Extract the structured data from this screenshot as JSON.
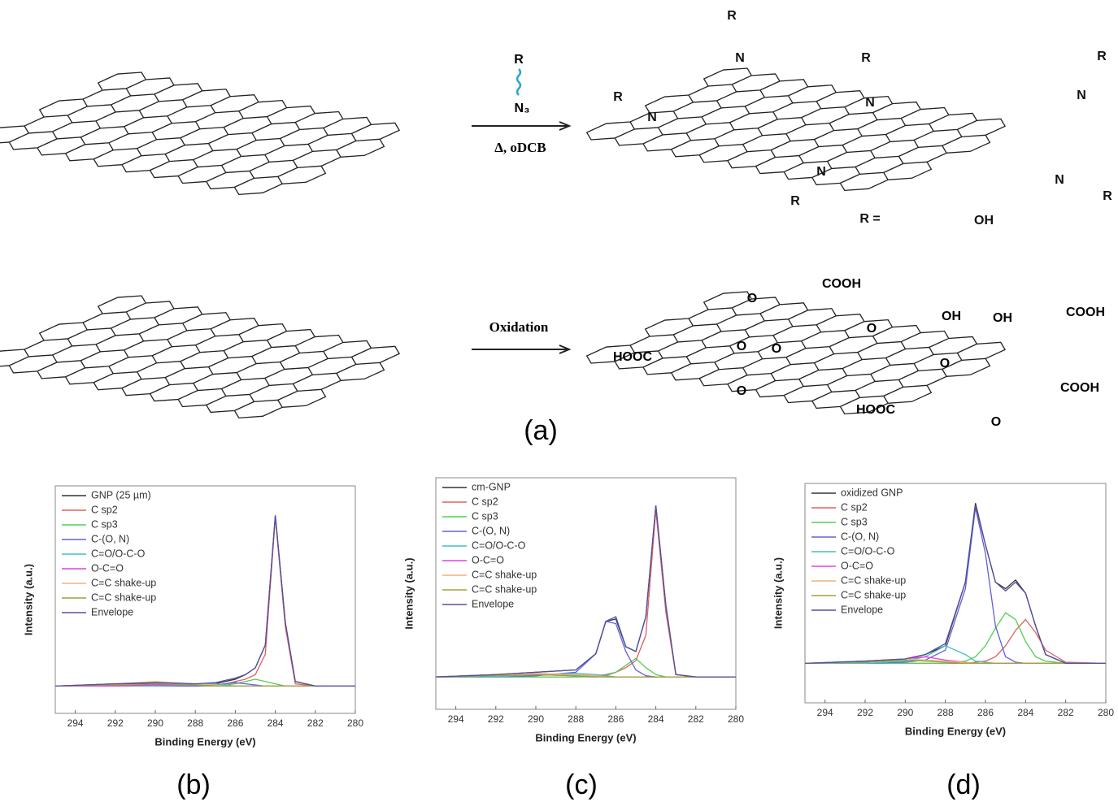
{
  "scheme": {
    "reagent": {
      "r": "R",
      "azide": "N₃"
    },
    "conditions_1": "Δ, oDCB",
    "conditions_2": "Oxidation",
    "product_1_labels": [
      "R",
      "N",
      "R",
      "N",
      "R",
      "N",
      "R",
      "N",
      "N",
      "R",
      "N",
      "R",
      "R =",
      "OH"
    ],
    "product_2_labels": [
      "COOH",
      "O",
      "O",
      "OH",
      "OH",
      "COOH",
      "HOOC",
      "O",
      "O",
      "O",
      "O",
      "COOH",
      "HOOC",
      "O"
    ],
    "panel_label": "(a)"
  },
  "chart_data": [
    {
      "type": "line",
      "panel_label": "(b)",
      "xlabel": "Binding Energy (eV)",
      "ylabel": "Intensity (a.u.)",
      "xlim": [
        295,
        280
      ],
      "ylim": [
        0,
        100
      ],
      "xticks": [
        294,
        292,
        290,
        288,
        286,
        284,
        282,
        280
      ],
      "x": [
        295,
        292,
        290,
        288,
        287,
        286.5,
        286,
        285.5,
        285,
        284.5,
        284,
        283.5,
        283,
        282,
        280
      ],
      "series": [
        {
          "name": "GNP (25 µm)",
          "color": "#333333",
          "values": [
            12,
            13,
            13,
            12.5,
            13,
            14,
            15,
            17,
            20,
            30,
            87,
            40,
            14,
            12,
            12
          ]
        },
        {
          "name": "C sp2",
          "color": "#e06060",
          "values": [
            12,
            12.5,
            12.5,
            12,
            12.5,
            13,
            14,
            15,
            17,
            26,
            86,
            38,
            13,
            12,
            12
          ]
        },
        {
          "name": "C sp3",
          "color": "#50d050",
          "values": [
            12,
            12,
            12,
            12,
            12,
            12.5,
            13,
            14,
            15,
            14,
            13,
            12,
            12,
            12,
            12
          ]
        },
        {
          "name": "C-(O, N)",
          "color": "#6060e0",
          "values": [
            12,
            12,
            12,
            12,
            12.5,
            13,
            13.5,
            13,
            12.5,
            12,
            12,
            12,
            12,
            12,
            12
          ]
        },
        {
          "name": "C=O/O-C-O",
          "color": "#40c0c0",
          "values": [
            12,
            12,
            12,
            12.5,
            13,
            12.5,
            12,
            12,
            12,
            12,
            12,
            12,
            12,
            12,
            12
          ]
        },
        {
          "name": "O-C=O",
          "color": "#e040e0",
          "values": [
            12,
            12,
            12.5,
            12.5,
            12,
            12,
            12,
            12,
            12,
            12,
            12,
            12,
            12,
            12,
            12
          ]
        },
        {
          "name": "C=C shake-up",
          "color": "#f0b080",
          "values": [
            12,
            13,
            14,
            13,
            12.5,
            12,
            12,
            12,
            12,
            12,
            12,
            12,
            12,
            12,
            12
          ]
        },
        {
          "name": "C=C shake-up",
          "color": "#a0a040",
          "values": [
            12,
            12.5,
            13,
            12.5,
            12,
            12,
            12,
            12,
            12,
            12,
            12,
            12,
            12,
            12,
            12
          ]
        },
        {
          "name": "Envelope",
          "color": "#5050a0",
          "values": [
            12,
            13,
            13.5,
            13,
            13.5,
            14.5,
            15.5,
            17,
            20,
            30,
            87,
            40,
            14,
            12,
            12
          ]
        }
      ]
    },
    {
      "type": "line",
      "panel_label": "(c)",
      "xlabel": "Binding Energy (eV)",
      "ylabel": "Intensity (a.u.)",
      "xlim": [
        295,
        280
      ],
      "ylim": [
        0,
        100
      ],
      "xticks": [
        294,
        292,
        290,
        288,
        286,
        284,
        282,
        280
      ],
      "x": [
        295,
        292,
        290,
        288,
        287,
        286.5,
        286,
        285.5,
        285,
        284.5,
        284,
        283.5,
        283,
        282,
        280
      ],
      "series": [
        {
          "name": "cm-GNP",
          "color": "#333333",
          "values": [
            14,
            15,
            16,
            17,
            24,
            38,
            39,
            27,
            25,
            40,
            88,
            45,
            15,
            14,
            14
          ]
        },
        {
          "name": "C sp2",
          "color": "#e06060",
          "values": [
            14,
            14,
            14,
            14,
            14.5,
            15,
            16,
            18,
            21,
            32,
            86,
            42,
            15,
            14,
            14
          ]
        },
        {
          "name": "C sp3",
          "color": "#50d050",
          "values": [
            14,
            14,
            14,
            14,
            14,
            14.5,
            16,
            19,
            22,
            18,
            15,
            14,
            14,
            14,
            14
          ]
        },
        {
          "name": "C-(O, N)",
          "color": "#6060e0",
          "values": [
            14,
            14,
            14.5,
            16,
            24,
            38,
            37,
            25,
            17,
            14.5,
            14,
            14,
            14,
            14,
            14
          ]
        },
        {
          "name": "C=O/O-C-O",
          "color": "#40c0c0",
          "values": [
            14,
            14,
            15,
            15.5,
            15,
            14.5,
            14,
            14,
            14,
            14,
            14,
            14,
            14,
            14,
            14
          ]
        },
        {
          "name": "O-C=O",
          "color": "#e040e0",
          "values": [
            14,
            14.5,
            15,
            14.5,
            14,
            14,
            14,
            14,
            14,
            14,
            14,
            14,
            14,
            14,
            14
          ]
        },
        {
          "name": "C=C shake-up",
          "color": "#f0b080",
          "values": [
            14,
            15,
            15.5,
            15,
            14.5,
            14,
            14,
            14,
            14,
            14,
            14,
            14,
            14,
            14,
            14
          ]
        },
        {
          "name": "C=C shake-up",
          "color": "#a0a040",
          "values": [
            14,
            14.5,
            15,
            14.5,
            14,
            14,
            14,
            14,
            14,
            14,
            14,
            14,
            14,
            14,
            14
          ]
        },
        {
          "name": "Envelope",
          "color": "#5050a0",
          "values": [
            14,
            15,
            16,
            17,
            24,
            38,
            40,
            27,
            25,
            40,
            88,
            45,
            15,
            14,
            14
          ]
        }
      ]
    },
    {
      "type": "line",
      "panel_label": "(d)",
      "xlabel": "Binding Energy (eV)",
      "ylabel": "Intensity (a.u.)",
      "xlim": [
        295,
        280
      ],
      "ylim": [
        0,
        100
      ],
      "xticks": [
        294,
        292,
        290,
        288,
        286,
        284,
        282,
        280
      ],
      "x": [
        295,
        292,
        290,
        289,
        288,
        287,
        286.5,
        286,
        285.5,
        285,
        284.5,
        284,
        283.5,
        283,
        282,
        280
      ],
      "series": [
        {
          "name": "oxidized GNP",
          "color": "#333333",
          "values": [
            18,
            19,
            20,
            22,
            26,
            55,
            91,
            72,
            55,
            52,
            56,
            50,
            35,
            22,
            18,
            18
          ]
        },
        {
          "name": "C sp2",
          "color": "#e06060",
          "values": [
            18,
            18,
            18,
            18,
            18,
            18,
            18.5,
            19,
            21,
            26,
            33,
            38,
            32,
            24,
            18.5,
            18
          ]
        },
        {
          "name": "C sp3",
          "color": "#50d050",
          "values": [
            18,
            18,
            18,
            18,
            18,
            19,
            21,
            26,
            34,
            41,
            38,
            28,
            21,
            19,
            18,
            18
          ]
        },
        {
          "name": "C-(O, N)",
          "color": "#6060e0",
          "values": [
            18,
            18,
            18.5,
            19.5,
            24,
            52,
            89,
            68,
            35,
            21,
            18.5,
            18,
            18,
            18,
            18,
            18
          ]
        },
        {
          "name": "C=O/O-C-O",
          "color": "#40c0c0",
          "values": [
            18,
            18,
            19,
            21,
            26,
            22,
            19,
            18.5,
            18,
            18,
            18,
            18,
            18,
            18,
            18,
            18
          ]
        },
        {
          "name": "O-C=O",
          "color": "#e040e0",
          "values": [
            18,
            18.5,
            20,
            21,
            19.5,
            18.5,
            18,
            18,
            18,
            18,
            18,
            18,
            18,
            18,
            18,
            18
          ]
        },
        {
          "name": "C=C shake-up",
          "color": "#f0b080",
          "values": [
            18,
            19,
            20,
            19.5,
            19,
            18.5,
            18,
            18,
            18,
            18,
            18,
            18,
            18,
            18,
            18,
            18
          ]
        },
        {
          "name": "C=C shake-up",
          "color": "#a0a040",
          "values": [
            18,
            18.5,
            19.5,
            19,
            18.5,
            18,
            18,
            18,
            18,
            18,
            18,
            18,
            18,
            18,
            18,
            18
          ]
        },
        {
          "name": "Envelope",
          "color": "#5050a0",
          "values": [
            18,
            19,
            20,
            22,
            27,
            55,
            90,
            72,
            55,
            51,
            55,
            50,
            35,
            22,
            18,
            18
          ]
        }
      ]
    }
  ]
}
